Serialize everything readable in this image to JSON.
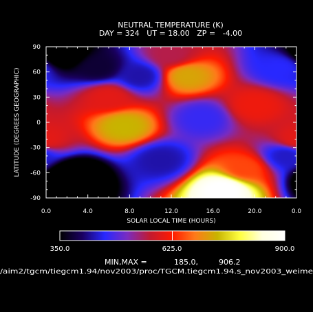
{
  "chart_data": {
    "type": "heatmap",
    "title": "NEUTRAL TEMPERATURE (K)",
    "subtitle": "DAY = 324   UT = 18.00   ZP =   -4.00",
    "xlabel": "SOLAR LOCAL TIME (HOURS)",
    "ylabel": "LATITUDE (DEGREES GEOGRAPHIC)",
    "xlim": [
      0,
      24
    ],
    "ylim": [
      -90,
      90
    ],
    "x_tick_labels": [
      "0.0",
      "4.0",
      "8.0",
      "12.0",
      "16.0",
      "20.0",
      "0.0"
    ],
    "y_tick_values": [
      -90,
      -60,
      -30,
      0,
      30,
      60,
      90
    ],
    "colorbar": {
      "min": 350.0,
      "mid": 625.0,
      "max": 900.0,
      "tick_labels": [
        "350.0",
        "625.0",
        "900.0"
      ]
    },
    "minmax_label": "MIN,MAX =",
    "min_value": "185.0,",
    "max_value": "906.2",
    "grid": false,
    "field_features": [
      {
        "local_time": 1.5,
        "latitude": 82,
        "value": 300
      },
      {
        "local_time": 5.0,
        "latitude": 65,
        "value": 380
      },
      {
        "local_time": 9.0,
        "latitude": 55,
        "value": 430
      },
      {
        "local_time": 13.5,
        "latitude": 55,
        "value": 720
      },
      {
        "local_time": 15.0,
        "latitude": 5,
        "value": 470
      },
      {
        "local_time": 7.5,
        "latitude": -5,
        "value": 735
      },
      {
        "local_time": 2.5,
        "latitude": -65,
        "value": 240
      },
      {
        "local_time": 11.0,
        "latitude": -45,
        "value": 430
      },
      {
        "local_time": 17.0,
        "latitude": -80,
        "value": 905
      },
      {
        "local_time": 0.0,
        "latitude": -20,
        "value": 600
      },
      {
        "local_time": 20.0,
        "latitude": 20,
        "value": 610
      },
      {
        "local_time": 22.5,
        "latitude": 65,
        "value": 460
      },
      {
        "local_time": 23.0,
        "latitude": -40,
        "value": 440
      },
      {
        "local_time": 6.0,
        "latitude": 30,
        "value": 600
      },
      {
        "local_time": 19.0,
        "latitude": -55,
        "value": 650
      },
      {
        "local_time": 12.0,
        "latitude": 80,
        "value": 560
      }
    ],
    "colormap": [
      "#000000",
      "#1a0060",
      "#2828ff",
      "#7a2cc0",
      "#c21a30",
      "#ff1a00",
      "#ff7a1a",
      "#c8b400",
      "#ffff40",
      "#ffffe0",
      "#ffffff"
    ]
  },
  "source_path": "/aim2/tgcm/tiegcm1.94/nov2003/proc/TGCM.tiegcm1.94.s_nov2003_weime"
}
